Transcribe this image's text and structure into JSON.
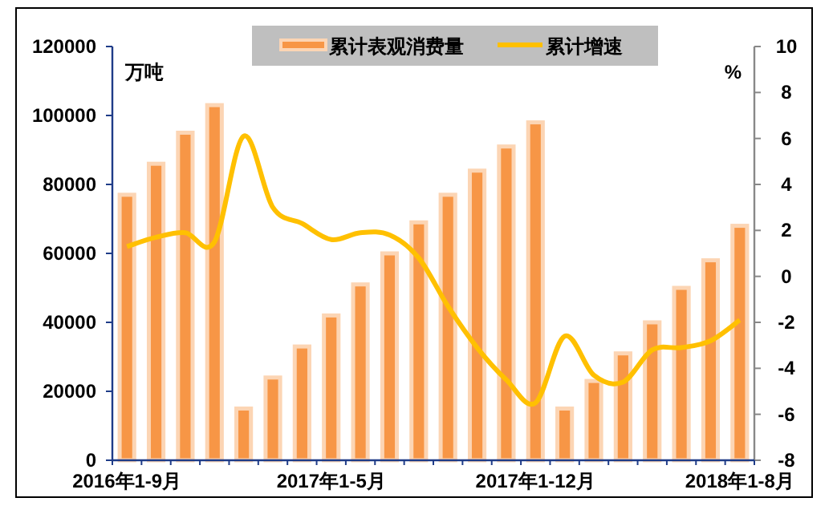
{
  "chart_data": {
    "type": "bar",
    "categories": [
      "2016年1-9月",
      null,
      null,
      null,
      null,
      null,
      null,
      "2017年1-5月",
      null,
      null,
      null,
      null,
      null,
      null,
      "2017年1-12月",
      null,
      null,
      null,
      null,
      null,
      null,
      "2018年1-8月"
    ],
    "series": [
      {
        "name": "累计表观消费量",
        "color": "#f79646",
        "values": [
          77000,
          86000,
          95000,
          103000,
          15000,
          24000,
          33000,
          42000,
          51000,
          60000,
          69000,
          77000,
          84000,
          91000,
          98000,
          15000,
          23000,
          31000,
          40000,
          50000,
          58000,
          68000
        ]
      },
      {
        "name": "累计增速",
        "type": "line",
        "axis": "y2",
        "color": "#ffc000",
        "values": [
          1.3,
          1.7,
          1.9,
          1.5,
          6.1,
          3.0,
          2.3,
          1.6,
          1.9,
          1.8,
          0.8,
          -1.3,
          -3.1,
          -4.5,
          -5.5,
          -2.6,
          -4.3,
          -4.6,
          -3.2,
          -3.1,
          -2.8,
          -1.9
        ]
      }
    ],
    "ylabel": "万吨",
    "y2label": "%",
    "ylim": [
      0,
      120000
    ],
    "yticks": [
      0,
      20000,
      40000,
      60000,
      80000,
      100000,
      120000
    ],
    "y2lim": [
      -8,
      10
    ],
    "y2ticks": [
      -8,
      -6,
      -4,
      -2,
      0,
      2,
      4,
      6,
      8,
      10
    ],
    "legend": "top",
    "grid": false,
    "marker": "none"
  }
}
